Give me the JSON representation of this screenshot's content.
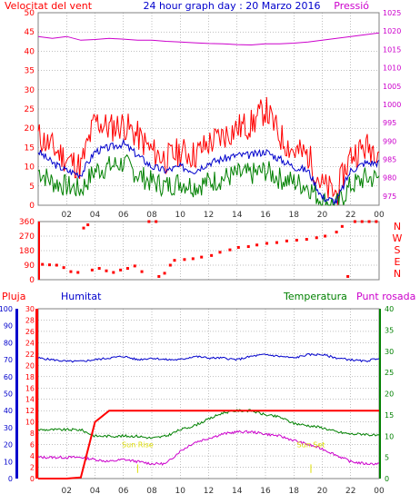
{
  "header": {
    "title": "24 hour graph day : 20 Marzo 2016",
    "wind_label": "Velocitat del vent",
    "pressure_label": "Pressió"
  },
  "bottom_labels": {
    "rain": "Pluja",
    "humidity": "Humitat",
    "temperature": "Temperatura",
    "dewpoint": "Punt rosada",
    "sunrise": "Sun Rise",
    "sunset": "Sun Set"
  },
  "colors": {
    "red": "#ff0000",
    "green": "#008000",
    "blue": "#0000cc",
    "magenta": "#cc00cc",
    "grid": "#808080",
    "yellow": "#dddd00"
  },
  "chart_data": [
    {
      "type": "line",
      "name": "wind-pressure",
      "x_ticks": [
        "02",
        "04",
        "06",
        "08",
        "10",
        "12",
        "14",
        "16",
        "18",
        "20",
        "22",
        "00"
      ],
      "left_axis": {
        "title": "Velocitat del vent",
        "ticks": [
          0,
          5,
          10,
          15,
          20,
          25,
          30,
          35,
          40,
          45,
          50
        ],
        "ylim": [
          0,
          50
        ]
      },
      "right_axis": {
        "title": "Pressió",
        "ticks": [
          975,
          980,
          985,
          990,
          995,
          1000,
          1005,
          1010,
          1015,
          1020,
          1025
        ],
        "ylim": [
          972.5,
          1025
        ]
      },
      "x": [
        0,
        1,
        2,
        3,
        4,
        5,
        6,
        7,
        8,
        9,
        10,
        11,
        12,
        13,
        14,
        15,
        16,
        17,
        18,
        19,
        20,
        21,
        22,
        23,
        24
      ],
      "series": [
        {
          "key": "gust",
          "color": "#ff0000",
          "values": [
            18,
            15,
            12,
            10,
            22,
            20,
            21,
            18,
            14,
            12,
            14,
            13,
            16,
            18,
            20,
            21,
            25,
            18,
            14,
            13,
            5,
            3,
            13,
            15,
            15
          ]
        },
        {
          "key": "average",
          "color": "#0000cc",
          "values": [
            14,
            11,
            9,
            8,
            14,
            15,
            16,
            13,
            10,
            9,
            10,
            9,
            11,
            12,
            13,
            13,
            14,
            12,
            10,
            9,
            2,
            1,
            9,
            11,
            11
          ]
        },
        {
          "key": "minimum",
          "color": "#008000",
          "values": [
            9,
            6,
            5,
            4,
            9,
            10,
            11,
            8,
            6,
            5,
            6,
            5,
            6,
            7,
            8,
            8,
            9,
            7,
            6,
            5,
            1,
            0,
            5,
            7,
            7
          ]
        },
        {
          "key": "pressure",
          "color": "#cc00cc",
          "axis": "right",
          "values": [
            1018.5,
            1018,
            1018.5,
            1017.5,
            1017.7,
            1018,
            1017.8,
            1017.5,
            1017.5,
            1017.2,
            1017,
            1016.8,
            1016.6,
            1016.5,
            1016.3,
            1016.2,
            1016.5,
            1016.5,
            1016.7,
            1017,
            1017.5,
            1018,
            1018.5,
            1019,
            1019.5
          ]
        }
      ]
    },
    {
      "type": "scatter",
      "name": "wind-direction",
      "left_axis": {
        "ticks": [
          0,
          90,
          180,
          270,
          360
        ],
        "ylim": [
          0,
          360
        ]
      },
      "right_labels": [
        "N",
        "W",
        "S",
        "E",
        "N"
      ],
      "points": [
        [
          0.3,
          95
        ],
        [
          0.8,
          92
        ],
        [
          1.3,
          90
        ],
        [
          1.8,
          75
        ],
        [
          2.3,
          50
        ],
        [
          2.8,
          45
        ],
        [
          3.2,
          320
        ],
        [
          3.5,
          340
        ],
        [
          3.8,
          60
        ],
        [
          4.3,
          70
        ],
        [
          4.8,
          55
        ],
        [
          5.3,
          45
        ],
        [
          5.8,
          60
        ],
        [
          6.3,
          70
        ],
        [
          6.8,
          85
        ],
        [
          7.3,
          50
        ],
        [
          7.8,
          360
        ],
        [
          8.3,
          360
        ],
        [
          8.5,
          20
        ],
        [
          8.9,
          40
        ],
        [
          9.3,
          90
        ],
        [
          9.6,
          120
        ],
        [
          10.3,
          125
        ],
        [
          10.9,
          130
        ],
        [
          11.5,
          140
        ],
        [
          12.2,
          150
        ],
        [
          12.8,
          170
        ],
        [
          13.5,
          185
        ],
        [
          14.1,
          200
        ],
        [
          14.8,
          205
        ],
        [
          15.4,
          215
        ],
        [
          16.1,
          225
        ],
        [
          16.8,
          230
        ],
        [
          17.5,
          240
        ],
        [
          18.2,
          245
        ],
        [
          18.9,
          250
        ],
        [
          19.6,
          260
        ],
        [
          20.2,
          270
        ],
        [
          21.0,
          295
        ],
        [
          21.4,
          330
        ],
        [
          21.8,
          20
        ],
        [
          22.3,
          360
        ],
        [
          22.8,
          360
        ],
        [
          23.3,
          360
        ],
        [
          23.8,
          360
        ]
      ]
    },
    {
      "type": "line",
      "name": "rain-humidity-temperature",
      "x_ticks": [
        "02",
        "04",
        "06",
        "08",
        "10",
        "12",
        "14",
        "16",
        "18",
        "20",
        "22",
        "00"
      ],
      "rain_axis": {
        "title": "Pluja",
        "ticks": [
          0,
          2,
          4,
          6,
          8,
          10,
          12,
          14,
          16,
          18,
          20,
          22,
          24,
          26,
          28,
          30
        ],
        "ylim": [
          0,
          30
        ]
      },
      "humidity_axis": {
        "title": "Humitat",
        "ticks": [
          0,
          10,
          20,
          30,
          40,
          50,
          60,
          70,
          80,
          90,
          100
        ],
        "ylim": [
          0,
          100
        ]
      },
      "temp_axis": {
        "title": "Temperatura",
        "ticks": [
          0,
          5,
          10,
          15,
          20,
          25,
          30,
          35,
          40
        ],
        "ylim": [
          0,
          40
        ]
      },
      "x": [
        0,
        1,
        2,
        3,
        4,
        5,
        6,
        7,
        8,
        9,
        10,
        11,
        12,
        13,
        14,
        15,
        16,
        17,
        18,
        19,
        20,
        21,
        22,
        23,
        24
      ],
      "series": [
        {
          "key": "rain",
          "color": "#ff0000",
          "axis": "rain",
          "values": [
            0,
            0,
            0,
            0.2,
            10,
            12,
            12,
            12,
            12,
            12,
            12,
            12,
            12,
            12,
            12,
            12,
            12,
            12,
            12,
            12,
            12,
            12,
            12,
            12,
            12
          ]
        },
        {
          "key": "humidity",
          "color": "#0000cc",
          "axis": "humidity",
          "values": [
            71,
            70,
            69,
            69,
            70,
            71,
            72,
            70,
            71,
            70,
            70,
            72,
            71,
            71,
            70,
            72,
            73,
            72,
            71,
            73,
            73,
            71,
            70,
            69,
            71
          ]
        },
        {
          "key": "temperature",
          "color": "#008000",
          "axis": "temp",
          "values": [
            11.5,
            11.5,
            11.5,
            11.5,
            10,
            10,
            10,
            10,
            9.5,
            10,
            11.5,
            12.5,
            14,
            15.5,
            16,
            16,
            15,
            14.5,
            13,
            12.5,
            12,
            11,
            10.5,
            10.5,
            10
          ]
        },
        {
          "key": "dewpoint",
          "color": "#cc00cc",
          "axis": "temp",
          "values": [
            5,
            5,
            5,
            5,
            4.5,
            4,
            4.5,
            4,
            3.5,
            3.5,
            6.5,
            8.5,
            9.5,
            10.5,
            11,
            11,
            10.5,
            10,
            9,
            8,
            7,
            5.5,
            4,
            3.5,
            3.5
          ]
        }
      ],
      "sun_events": [
        {
          "key": "sunrise",
          "hour": 7.0
        },
        {
          "key": "sunset",
          "hour": 19.2
        }
      ]
    }
  ]
}
